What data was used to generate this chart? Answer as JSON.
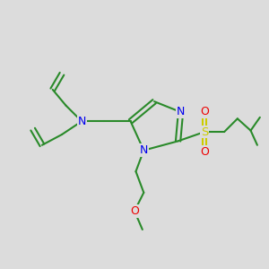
{
  "bg_color": "#dcdcdc",
  "bond_color": "#2a8a2a",
  "N_color": "#0000ee",
  "O_color": "#ee0000",
  "S_color": "#cccc00",
  "bond_width": 1.5,
  "dbo": 0.018,
  "figsize": [
    3.0,
    3.0
  ],
  "dpi": 100,
  "xlim": [
    -0.95,
    1.05
  ],
  "ylim": [
    -0.85,
    0.85
  ]
}
